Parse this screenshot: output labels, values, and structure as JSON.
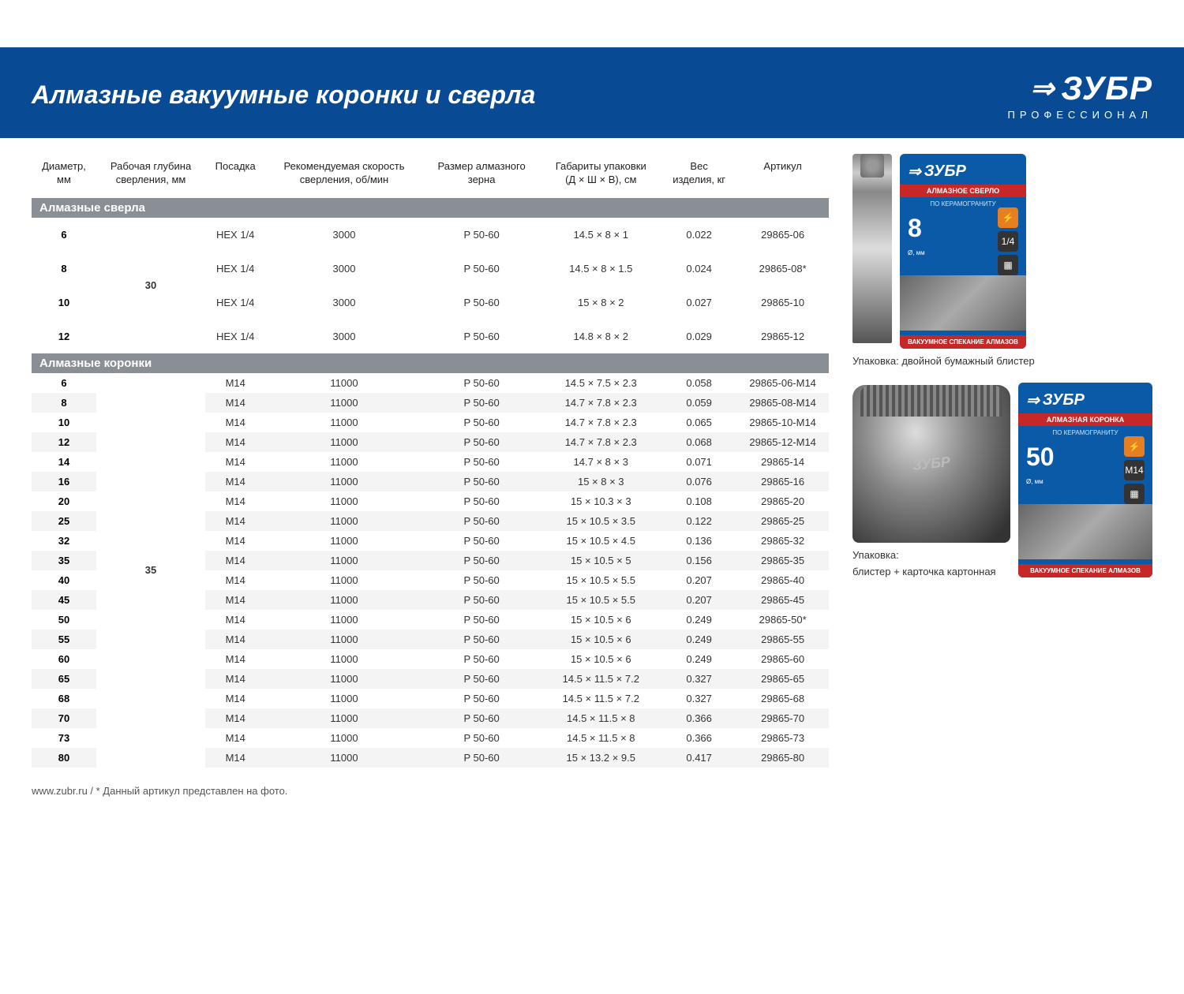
{
  "header": {
    "title": "Алмазные вакуумные коронки и сверла",
    "brand": "ЗУБР",
    "brand_sub": "ПРОФЕССИОНАЛ"
  },
  "columns": [
    "Диаметр, мм",
    "Рабочая глубина сверления, мм",
    "Посадка",
    "Рекомендуемая скорость сверления, об/мин",
    "Размер алмазного зерна",
    "Габариты упаковки (Д × Ш × В), см",
    "Вес изделия, кг",
    "Артикул"
  ],
  "section1": {
    "title": "Алмазные сверла",
    "depth": "30",
    "rows": [
      {
        "d": "6",
        "fit": "HEX 1/4",
        "spd": "3000",
        "grain": "P 50-60",
        "pkg": "14.5 × 8 × 1",
        "w": "0.022",
        "art": "29865-06"
      },
      {
        "d": "8",
        "fit": "HEX 1/4",
        "spd": "3000",
        "grain": "P 50-60",
        "pkg": "14.5 × 8 × 1.5",
        "w": "0.024",
        "art": "29865-08*"
      },
      {
        "d": "10",
        "fit": "HEX 1/4",
        "spd": "3000",
        "grain": "P 50-60",
        "pkg": "15 × 8 × 2",
        "w": "0.027",
        "art": "29865-10"
      },
      {
        "d": "12",
        "fit": "HEX 1/4",
        "spd": "3000",
        "grain": "P 50-60",
        "pkg": "14.8 × 8 × 2",
        "w": "0.029",
        "art": "29865-12"
      }
    ]
  },
  "section2": {
    "title": "Алмазные коронки",
    "depth": "35",
    "rows": [
      {
        "d": "6",
        "fit": "M14",
        "spd": "11000",
        "grain": "P 50-60",
        "pkg": "14.5 × 7.5 × 2.3",
        "w": "0.058",
        "art": "29865-06-M14"
      },
      {
        "d": "8",
        "fit": "M14",
        "spd": "11000",
        "grain": "P 50-60",
        "pkg": "14.7 × 7.8 × 2.3",
        "w": "0.059",
        "art": "29865-08-M14"
      },
      {
        "d": "10",
        "fit": "M14",
        "spd": "11000",
        "grain": "P 50-60",
        "pkg": "14.7 × 7.8 × 2.3",
        "w": "0.065",
        "art": "29865-10-M14"
      },
      {
        "d": "12",
        "fit": "M14",
        "spd": "11000",
        "grain": "P 50-60",
        "pkg": "14.7 × 7.8 × 2.3",
        "w": "0.068",
        "art": "29865-12-M14"
      },
      {
        "d": "14",
        "fit": "M14",
        "spd": "11000",
        "grain": "P 50-60",
        "pkg": "14.7 × 8 × 3",
        "w": "0.071",
        "art": "29865-14"
      },
      {
        "d": "16",
        "fit": "M14",
        "spd": "11000",
        "grain": "P 50-60",
        "pkg": "15 × 8 × 3",
        "w": "0.076",
        "art": "29865-16"
      },
      {
        "d": "20",
        "fit": "M14",
        "spd": "11000",
        "grain": "P 50-60",
        "pkg": "15 × 10.3 × 3",
        "w": "0.108",
        "art": "29865-20"
      },
      {
        "d": "25",
        "fit": "M14",
        "spd": "11000",
        "grain": "P 50-60",
        "pkg": "15 × 10.5 × 3.5",
        "w": "0.122",
        "art": "29865-25"
      },
      {
        "d": "32",
        "fit": "M14",
        "spd": "11000",
        "grain": "P 50-60",
        "pkg": "15 × 10.5 × 4.5",
        "w": "0.136",
        "art": "29865-32"
      },
      {
        "d": "35",
        "fit": "M14",
        "spd": "11000",
        "grain": "P 50-60",
        "pkg": "15 × 10.5 × 5",
        "w": "0.156",
        "art": "29865-35"
      },
      {
        "d": "40",
        "fit": "M14",
        "spd": "11000",
        "grain": "P 50-60",
        "pkg": "15 × 10.5 × 5.5",
        "w": "0.207",
        "art": "29865-40"
      },
      {
        "d": "45",
        "fit": "M14",
        "spd": "11000",
        "grain": "P 50-60",
        "pkg": "15 × 10.5 × 5.5",
        "w": "0.207",
        "art": "29865-45"
      },
      {
        "d": "50",
        "fit": "M14",
        "spd": "11000",
        "grain": "P 50-60",
        "pkg": "15 × 10.5 × 6",
        "w": "0.249",
        "art": "29865-50*"
      },
      {
        "d": "55",
        "fit": "M14",
        "spd": "11000",
        "grain": "P 50-60",
        "pkg": "15 × 10.5 × 6",
        "w": "0.249",
        "art": "29865-55"
      },
      {
        "d": "60",
        "fit": "M14",
        "spd": "11000",
        "grain": "P 50-60",
        "pkg": "15 × 10.5 × 6",
        "w": "0.249",
        "art": "29865-60"
      },
      {
        "d": "65",
        "fit": "M14",
        "spd": "11000",
        "grain": "P 50-60",
        "pkg": "14.5 × 11.5 × 7.2",
        "w": "0.327",
        "art": "29865-65"
      },
      {
        "d": "68",
        "fit": "M14",
        "spd": "11000",
        "grain": "P 50-60",
        "pkg": "14.5 × 11.5 × 7.2",
        "w": "0.327",
        "art": "29865-68"
      },
      {
        "d": "70",
        "fit": "M14",
        "spd": "11000",
        "grain": "P 50-60",
        "pkg": "14.5 × 11.5 × 8",
        "w": "0.366",
        "art": "29865-70"
      },
      {
        "d": "73",
        "fit": "M14",
        "spd": "11000",
        "grain": "P 50-60",
        "pkg": "14.5 × 11.5 × 8",
        "w": "0.366",
        "art": "29865-73"
      },
      {
        "d": "80",
        "fit": "M14",
        "spd": "11000",
        "grain": "P 50-60",
        "pkg": "15 × 13.2 × 9.5",
        "w": "0.417",
        "art": "29865-80"
      }
    ]
  },
  "sidebar": {
    "pkg1": {
      "title": "АЛМАЗНОЕ СВЕРЛО",
      "sub": "ПО КЕРАМОГРАНИТУ",
      "size": "8",
      "size_unit": "Ø, мм",
      "icon1": "1/4",
      "footer": "ВАКУУМНОЕ СПЕКАНИЕ АЛМАЗОВ"
    },
    "caption1": "Упаковка: двойной бумажный блистер",
    "pkg2": {
      "title": "АЛМАЗНАЯ КОРОНКА",
      "sub": "ПО КЕРАМОГРАНИТУ",
      "size": "50",
      "size_unit": "Ø, мм",
      "icon1": "M14",
      "footer": "ВАКУУМНОЕ СПЕКАНИЕ АЛМАЗОВ"
    },
    "caption2a": "Упаковка:",
    "caption2b": "блистер + карточка картонная"
  },
  "footer": "www.zubr.ru   /   * Данный артикул представлен на фото."
}
